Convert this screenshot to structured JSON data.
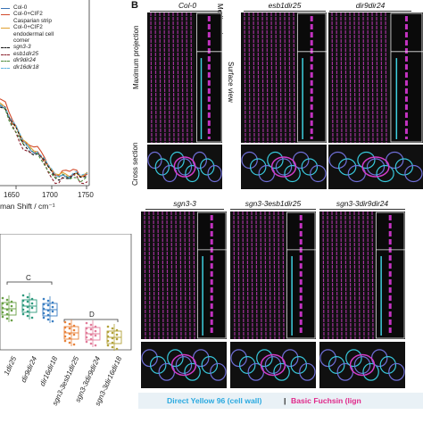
{
  "panel_b_letter": "B",
  "spectrum": {
    "legend": [
      {
        "label": "Col-0",
        "color": "#3a73b4",
        "dash": "solid"
      },
      {
        "label": "Col-0+CIF2",
        "color": "#d24a2a",
        "dash": "solid"
      },
      {
        "label": "Casparian strip",
        "color": "#d24a2a",
        "dash": "none"
      },
      {
        "label": "Col-0+CIF2",
        "color": "#e0a030",
        "dash": "solid"
      },
      {
        "label": "endodermal cell",
        "color": "#e0a030",
        "dash": "none"
      },
      {
        "label": "corner",
        "color": "#e0a030",
        "dash": "none"
      },
      {
        "label": "sgn3-3",
        "color": "#111111",
        "dash": "dashed"
      },
      {
        "label": "esb1dir25",
        "color": "#8a1e2a",
        "dash": "dashed"
      },
      {
        "label": "dir9dir24",
        "color": "#4a8a3a",
        "dash": "dashed"
      },
      {
        "label": "dir16dir18",
        "color": "#62b4e0",
        "dash": "dashed"
      }
    ],
    "x_ticks": [
      "1650",
      "1700",
      "1750"
    ],
    "x_label": "man Shift / cm⁻¹"
  },
  "boxplot": {
    "group_labels": [
      "C",
      "D"
    ],
    "x_labels": [
      "1dir25",
      "dir9dir24",
      "dir16dir18",
      "sgn3-3esb1dir25",
      "sgn3-3dir9dir24",
      "sgn3-3dir16dir18"
    ],
    "colors": [
      "#6aa046",
      "#2f9a7e",
      "#3a7ec2",
      "#e8823a",
      "#e27c9a",
      "#b3a23a"
    ]
  },
  "micrograph_columns_top": [
    {
      "genotype": "Col-0"
    },
    {
      "genotype": "esb1dir25"
    },
    {
      "genotype": "dir9dir24"
    }
  ],
  "micrograph_columns_bottom": [
    {
      "genotype": "sgn3-3"
    },
    {
      "genotype": "sgn3-3esb1dir25"
    },
    {
      "genotype": "sgn3-3dir9dir24"
    }
  ],
  "row_labels": {
    "max_projection": "Maximum projection",
    "surface_view": "Surface view",
    "median_view": "Median view",
    "cross_section": "Cross section"
  },
  "stain_legend": {
    "dy96": "Direct Yellow 96 (cell wall)",
    "separator": "|",
    "bf": "Basic Fuchsin (lign",
    "dy96_color": "#29a9e0",
    "bf_color": "#e0288a"
  }
}
